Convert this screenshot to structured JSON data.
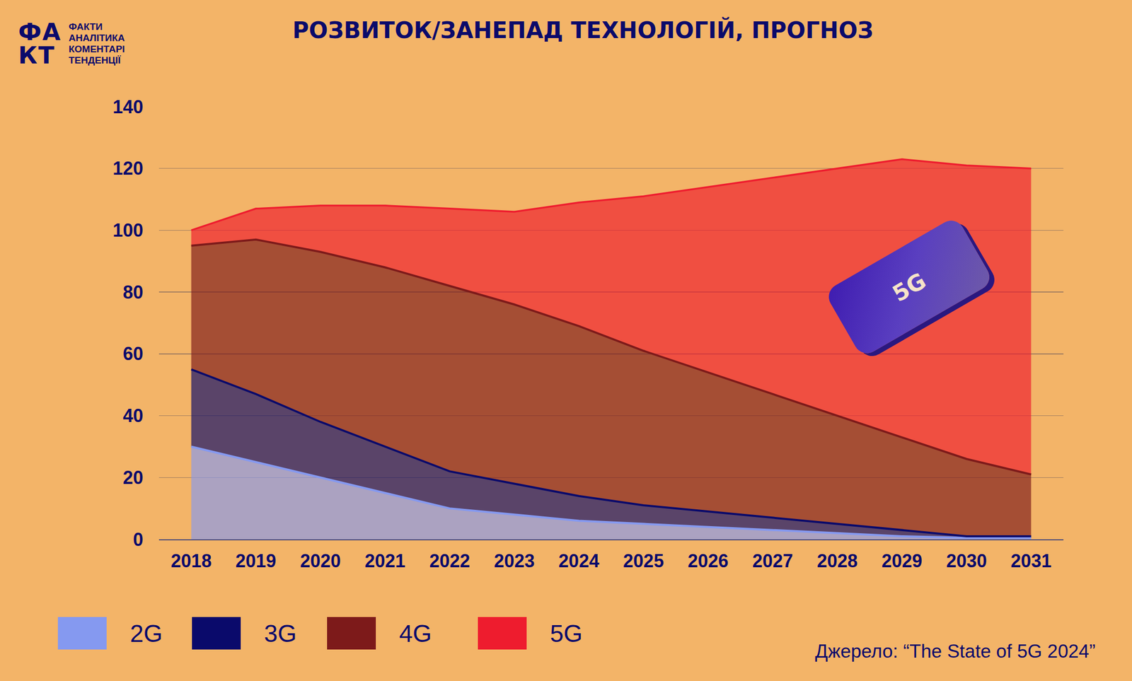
{
  "header": {
    "logo": "ФАКТ",
    "logo_lines": [
      "ФАКТИ",
      "АНАЛІТИКА",
      "КОМЕНТАРІ",
      "ТЕНДЕНЦІЇ"
    ]
  },
  "chart_data": {
    "type": "area",
    "stacked": true,
    "title": "РОЗВИТОК/ЗАНЕПАД ТЕХНОЛОГІЙ, ПРОГНОЗ",
    "x": [
      2018,
      2019,
      2020,
      2021,
      2022,
      2023,
      2024,
      2025,
      2026,
      2027,
      2028,
      2029,
      2030,
      2031
    ],
    "series": [
      {
        "name": "2G",
        "color": "#8599F0",
        "values": [
          30,
          25,
          20,
          15,
          10,
          8,
          6,
          5,
          4,
          3,
          2,
          1,
          0.5,
          0.5
        ]
      },
      {
        "name": "3G",
        "color": "#0A0A6B",
        "values": [
          25,
          22,
          18,
          15,
          12,
          10,
          8,
          6,
          5,
          4,
          3,
          2,
          0.5,
          0.5
        ]
      },
      {
        "name": "4G",
        "color": "#7D1A1A",
        "values": [
          40,
          50,
          55,
          58,
          60,
          58,
          55,
          50,
          45,
          40,
          35,
          30,
          25,
          20
        ]
      },
      {
        "name": "5G",
        "color": "#EE1C2E",
        "values": [
          5,
          10,
          15,
          20,
          25,
          30,
          40,
          50,
          60,
          70,
          80,
          90,
          95,
          99
        ]
      }
    ],
    "xlim": [
      2017.5,
      2031.5
    ],
    "xticks": [
      2018,
      2019,
      2020,
      2021,
      2022,
      2023,
      2024,
      2025,
      2026,
      2027,
      2028,
      2029,
      2030,
      2031
    ],
    "ylim": [
      0,
      140
    ],
    "yticks": [
      0,
      20,
      40,
      60,
      80,
      100,
      120,
      140
    ],
    "grid": true,
    "legend": "bottom"
  },
  "icon_text": "5G",
  "source": "Джерело: “The State of 5G 2024”"
}
